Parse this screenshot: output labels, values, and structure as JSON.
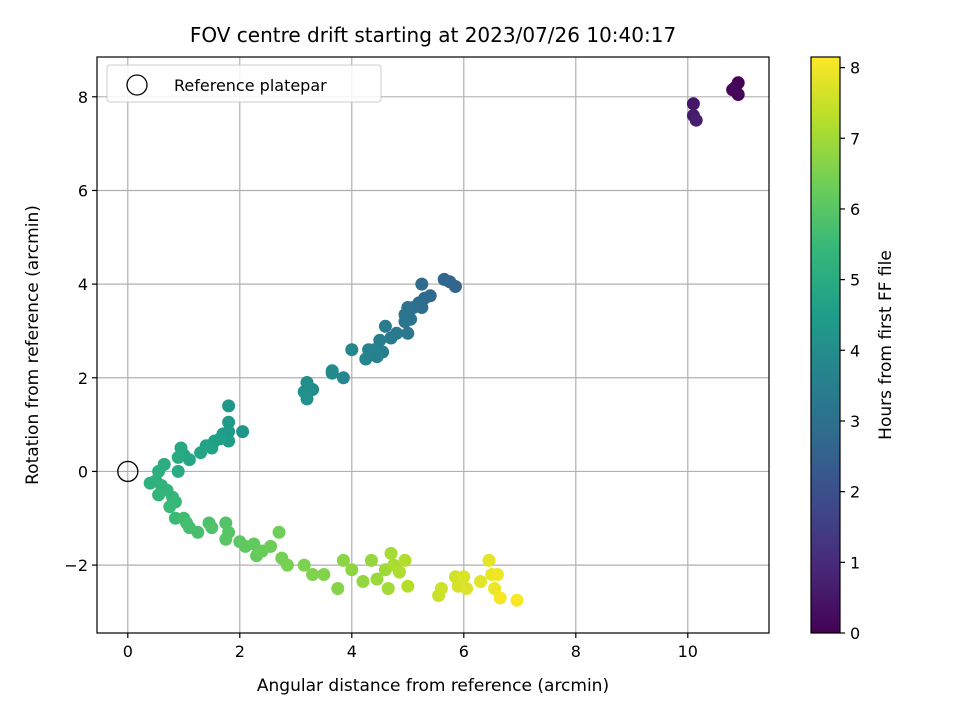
{
  "chart_data": {
    "type": "scatter",
    "title": "FOV centre drift starting at 2023/07/26 10:40:17",
    "xlabel": "Angular distance from reference (arcmin)",
    "ylabel": "Rotation from reference (arcmin)",
    "xlim": [
      -0.55,
      11.45
    ],
    "ylim": [
      -3.45,
      8.85
    ],
    "xticks": [
      0,
      2,
      4,
      6,
      8,
      10
    ],
    "yticks": [
      -2,
      0,
      2,
      4,
      6,
      8
    ],
    "x_tick_labels": [
      "0",
      "2",
      "4",
      "6",
      "8",
      "10"
    ],
    "y_tick_labels": [
      "−2",
      "0",
      "2",
      "4",
      "6",
      "8"
    ],
    "grid": true,
    "legend": {
      "placement": "top-left",
      "entries": [
        {
          "label": "Reference platepar",
          "marker": "hollow-circle"
        }
      ]
    },
    "reference_point": {
      "x": 0,
      "y": 0
    },
    "colorbar": {
      "label": "Hours from first FF file",
      "colormap": "viridis",
      "range": [
        0,
        8.15
      ],
      "ticks": [
        0,
        1,
        2,
        3,
        4,
        5,
        6,
        7,
        8
      ],
      "tick_labels": [
        "0",
        "1",
        "2",
        "3",
        "4",
        "5",
        "6",
        "7",
        "8"
      ],
      "colors": [
        "#440154",
        "#482878",
        "#3e4989",
        "#31688e",
        "#26828e",
        "#1f9e89",
        "#35b779",
        "#6ece58",
        "#b5de2b",
        "#fde725"
      ]
    },
    "points": [
      {
        "x": 10.9,
        "y": 8.3,
        "t": 0.0
      },
      {
        "x": 10.85,
        "y": 8.2,
        "t": 0.05
      },
      {
        "x": 10.9,
        "y": 8.05,
        "t": 0.1
      },
      {
        "x": 10.8,
        "y": 8.15,
        "t": 0.15
      },
      {
        "x": 10.1,
        "y": 7.85,
        "t": 0.5
      },
      {
        "x": 10.1,
        "y": 7.6,
        "t": 0.6
      },
      {
        "x": 10.15,
        "y": 7.5,
        "t": 0.7
      },
      {
        "x": 5.85,
        "y": 3.95,
        "t": 2.6
      },
      {
        "x": 5.75,
        "y": 4.05,
        "t": 2.65
      },
      {
        "x": 5.65,
        "y": 4.1,
        "t": 2.7
      },
      {
        "x": 5.4,
        "y": 3.75,
        "t": 2.75
      },
      {
        "x": 5.3,
        "y": 3.7,
        "t": 2.8
      },
      {
        "x": 5.25,
        "y": 4.0,
        "t": 2.85
      },
      {
        "x": 5.2,
        "y": 3.6,
        "t": 2.9
      },
      {
        "x": 5.25,
        "y": 3.5,
        "t": 2.95
      },
      {
        "x": 5.1,
        "y": 3.5,
        "t": 3.0
      },
      {
        "x": 5.0,
        "y": 3.5,
        "t": 3.05
      },
      {
        "x": 4.95,
        "y": 3.35,
        "t": 3.1
      },
      {
        "x": 5.05,
        "y": 3.25,
        "t": 3.15
      },
      {
        "x": 4.95,
        "y": 3.2,
        "t": 3.2
      },
      {
        "x": 5.0,
        "y": 2.95,
        "t": 3.25
      },
      {
        "x": 4.8,
        "y": 2.95,
        "t": 3.3
      },
      {
        "x": 4.7,
        "y": 2.85,
        "t": 3.35
      },
      {
        "x": 4.6,
        "y": 3.1,
        "t": 3.4
      },
      {
        "x": 4.5,
        "y": 2.8,
        "t": 3.45
      },
      {
        "x": 4.55,
        "y": 2.55,
        "t": 3.5
      },
      {
        "x": 4.45,
        "y": 2.45,
        "t": 3.55
      },
      {
        "x": 4.4,
        "y": 2.6,
        "t": 3.6
      },
      {
        "x": 4.3,
        "y": 2.6,
        "t": 3.65
      },
      {
        "x": 4.25,
        "y": 2.4,
        "t": 3.7
      },
      {
        "x": 4.0,
        "y": 2.6,
        "t": 3.75
      },
      {
        "x": 3.85,
        "y": 2.0,
        "t": 3.8
      },
      {
        "x": 3.65,
        "y": 2.15,
        "t": 3.85
      },
      {
        "x": 3.65,
        "y": 2.1,
        "t": 3.9
      },
      {
        "x": 3.3,
        "y": 1.75,
        "t": 3.95
      },
      {
        "x": 3.2,
        "y": 1.9,
        "t": 4.0
      },
      {
        "x": 3.15,
        "y": 1.7,
        "t": 4.05
      },
      {
        "x": 3.2,
        "y": 1.55,
        "t": 4.1
      },
      {
        "x": 2.05,
        "y": 0.85,
        "t": 4.25
      },
      {
        "x": 1.8,
        "y": 1.4,
        "t": 4.3
      },
      {
        "x": 1.8,
        "y": 1.05,
        "t": 4.35
      },
      {
        "x": 1.8,
        "y": 0.85,
        "t": 4.4
      },
      {
        "x": 1.7,
        "y": 0.8,
        "t": 4.45
      },
      {
        "x": 1.8,
        "y": 0.65,
        "t": 4.5
      },
      {
        "x": 1.65,
        "y": 0.7,
        "t": 4.55
      },
      {
        "x": 1.55,
        "y": 0.65,
        "t": 4.6
      },
      {
        "x": 1.5,
        "y": 0.5,
        "t": 4.65
      },
      {
        "x": 1.4,
        "y": 0.55,
        "t": 4.7
      },
      {
        "x": 1.3,
        "y": 0.4,
        "t": 4.75
      },
      {
        "x": 1.1,
        "y": 0.25,
        "t": 4.8
      },
      {
        "x": 1.0,
        "y": 0.35,
        "t": 4.85
      },
      {
        "x": 0.95,
        "y": 0.5,
        "t": 4.9
      },
      {
        "x": 0.9,
        "y": 0.3,
        "t": 4.95
      },
      {
        "x": 0.9,
        "y": 0.0,
        "t": 5.0
      },
      {
        "x": 0.65,
        "y": 0.15,
        "t": 5.05
      },
      {
        "x": 0.55,
        "y": 0.0,
        "t": 5.1
      },
      {
        "x": 0.5,
        "y": -0.2,
        "t": 5.15
      },
      {
        "x": 0.4,
        "y": -0.25,
        "t": 5.2
      },
      {
        "x": 0.6,
        "y": -0.3,
        "t": 5.25
      },
      {
        "x": 0.7,
        "y": -0.4,
        "t": 5.3
      },
      {
        "x": 0.55,
        "y": -0.5,
        "t": 5.35
      },
      {
        "x": 0.8,
        "y": -0.55,
        "t": 5.4
      },
      {
        "x": 0.85,
        "y": -0.65,
        "t": 5.45
      },
      {
        "x": 0.75,
        "y": -0.75,
        "t": 5.5
      },
      {
        "x": 0.85,
        "y": -1.0,
        "t": 5.55
      },
      {
        "x": 1.0,
        "y": -1.0,
        "t": 5.6
      },
      {
        "x": 1.05,
        "y": -1.1,
        "t": 5.65
      },
      {
        "x": 1.1,
        "y": -1.2,
        "t": 5.7
      },
      {
        "x": 1.25,
        "y": -1.3,
        "t": 5.75
      },
      {
        "x": 1.45,
        "y": -1.1,
        "t": 5.8
      },
      {
        "x": 1.5,
        "y": -1.2,
        "t": 5.85
      },
      {
        "x": 1.75,
        "y": -1.1,
        "t": 5.9
      },
      {
        "x": 1.8,
        "y": -1.3,
        "t": 5.95
      },
      {
        "x": 1.75,
        "y": -1.45,
        "t": 6.0
      },
      {
        "x": 2.0,
        "y": -1.5,
        "t": 6.05
      },
      {
        "x": 2.1,
        "y": -1.6,
        "t": 6.1
      },
      {
        "x": 2.25,
        "y": -1.55,
        "t": 6.15
      },
      {
        "x": 2.3,
        "y": -1.8,
        "t": 6.2
      },
      {
        "x": 2.4,
        "y": -1.7,
        "t": 6.25
      },
      {
        "x": 2.55,
        "y": -1.6,
        "t": 6.3
      },
      {
        "x": 2.7,
        "y": -1.3,
        "t": 6.35
      },
      {
        "x": 2.75,
        "y": -1.85,
        "t": 6.4
      },
      {
        "x": 2.85,
        "y": -2.0,
        "t": 6.45
      },
      {
        "x": 3.15,
        "y": -2.0,
        "t": 6.5
      },
      {
        "x": 3.3,
        "y": -2.2,
        "t": 6.55
      },
      {
        "x": 3.5,
        "y": -2.2,
        "t": 6.6
      },
      {
        "x": 3.75,
        "y": -2.5,
        "t": 6.65
      },
      {
        "x": 3.85,
        "y": -1.9,
        "t": 6.7
      },
      {
        "x": 4.0,
        "y": -2.1,
        "t": 6.75
      },
      {
        "x": 4.2,
        "y": -2.35,
        "t": 6.8
      },
      {
        "x": 4.35,
        "y": -1.9,
        "t": 6.85
      },
      {
        "x": 4.45,
        "y": -2.3,
        "t": 6.9
      },
      {
        "x": 4.6,
        "y": -2.1,
        "t": 6.95
      },
      {
        "x": 4.65,
        "y": -2.5,
        "t": 7.0
      },
      {
        "x": 4.7,
        "y": -1.75,
        "t": 7.05
      },
      {
        "x": 4.75,
        "y": -2.0,
        "t": 7.1
      },
      {
        "x": 4.85,
        "y": -2.15,
        "t": 7.15
      },
      {
        "x": 4.95,
        "y": -1.9,
        "t": 7.2
      },
      {
        "x": 5.0,
        "y": -2.45,
        "t": 7.25
      },
      {
        "x": 5.55,
        "y": -2.65,
        "t": 7.5
      },
      {
        "x": 5.6,
        "y": -2.5,
        "t": 7.55
      },
      {
        "x": 5.85,
        "y": -2.25,
        "t": 7.6
      },
      {
        "x": 5.9,
        "y": -2.45,
        "t": 7.65
      },
      {
        "x": 6.0,
        "y": -2.25,
        "t": 7.7
      },
      {
        "x": 6.05,
        "y": -2.5,
        "t": 7.75
      },
      {
        "x": 6.3,
        "y": -2.35,
        "t": 7.8
      },
      {
        "x": 6.45,
        "y": -1.9,
        "t": 7.85
      },
      {
        "x": 6.5,
        "y": -2.2,
        "t": 7.9
      },
      {
        "x": 6.55,
        "y": -2.5,
        "t": 7.95
      },
      {
        "x": 6.6,
        "y": -2.2,
        "t": 8.0
      },
      {
        "x": 6.65,
        "y": -2.7,
        "t": 8.05
      },
      {
        "x": 6.95,
        "y": -2.75,
        "t": 8.1
      }
    ]
  }
}
